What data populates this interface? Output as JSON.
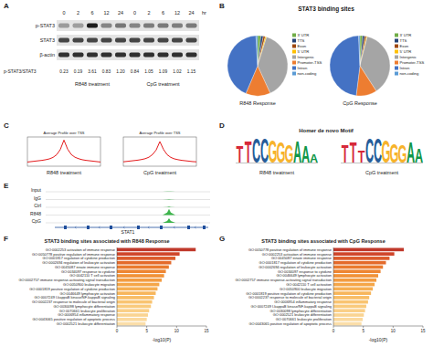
{
  "panel_labels": [
    "A",
    "B",
    "C",
    "D",
    "E",
    "F",
    "G"
  ],
  "headers": {
    "B": "STAT3 binding sites",
    "D": "Homer de novo Motif"
  },
  "blot": {
    "lanes": [
      "0",
      "2",
      "6",
      "12",
      "24",
      "0",
      "2",
      "6",
      "12",
      "24"
    ],
    "unit": "hr",
    "rows": [
      "p-STAT3",
      "STAT3",
      "β-actin"
    ],
    "ratio_label": "p-STAT3/STAT3",
    "ratios": [
      "0.23",
      "0.19",
      "3.61",
      "0.83",
      "1.20",
      "0.84",
      "1.05",
      "1.09",
      "1.02",
      "1.15"
    ],
    "groups": [
      "R848 treatment",
      "CpG treatment"
    ]
  },
  "motifs": [
    {
      "label": "R848 treatment",
      "consensus": "TTCCGGGAAA",
      "heights": [
        1.3,
        1.7,
        1.9,
        1.9,
        1.8,
        1.6,
        1.4,
        1.7,
        1.3,
        0.7
      ]
    },
    {
      "label": "CpG treatment",
      "consensus": "TTTCCGGGAA",
      "heights": [
        1.4,
        1.6,
        0.9,
        1.9,
        1.9,
        1.8,
        1.5,
        1.4,
        1.6,
        1.1
      ]
    }
  ],
  "motif_colors": {
    "A": "#109648",
    "C": "#255c99",
    "G": "#f7b32b",
    "T": "#d62839"
  },
  "genome_track": {
    "tracks": [
      {
        "label": "Input",
        "signal": 0.05
      },
      {
        "label": "IgG",
        "signal": 0.08
      },
      {
        "label": "Ctrl",
        "signal": 0.1
      },
      {
        "label": "R848",
        "signal": 0.95
      },
      {
        "label": "CpG",
        "signal": 0.7
      }
    ],
    "signal_range": [
      0,
      1
    ],
    "gene": "STAT1",
    "color": "#3cb44b"
  },
  "chart_data": [
    {
      "type": "pie",
      "title": "R848 Response",
      "categories": [
        "3' UTR",
        "TTS",
        "Exon",
        "5' UTR",
        "Intergenic",
        "Promoter-TSS",
        "Intron",
        "non-coding"
      ],
      "values": [
        8,
        6,
        5,
        3,
        177,
        61,
        197,
        4
      ],
      "colors": [
        "#70ad47",
        "#264478",
        "#9e480e",
        "#ffc000",
        "#a5a5a5",
        "#ed7d31",
        "#4472c4",
        "#5b9bd5"
      ],
      "legend": "right"
    },
    {
      "type": "pie",
      "title": "CpG Response",
      "categories": [
        "3' UTR",
        "TTS",
        "Exon",
        "5' UTR",
        "Intergenic",
        "Promoter-TSS",
        "Intron",
        "non-coding"
      ],
      "values": [
        6,
        5,
        4,
        2,
        160,
        48,
        205,
        3
      ],
      "colors": [
        "#70ad47",
        "#264478",
        "#9e480e",
        "#ffc000",
        "#a5a5a5",
        "#ed7d31",
        "#4472c4",
        "#5b9bd5"
      ],
      "legend": "right"
    },
    {
      "type": "line",
      "title": "Average Profile over TSS",
      "x_label": "R848 treatment",
      "x": [
        -3000,
        -2700,
        -2400,
        -2100,
        -1800,
        -1500,
        -1200,
        -900,
        -600,
        -300,
        0,
        300,
        600,
        900,
        1200,
        1500,
        1800,
        2100,
        2400,
        2700,
        3000
      ],
      "values": [
        0.2,
        0.22,
        0.24,
        0.26,
        0.28,
        0.31,
        0.35,
        0.42,
        0.55,
        0.8,
        1.25,
        0.82,
        0.56,
        0.43,
        0.36,
        0.31,
        0.28,
        0.26,
        0.24,
        0.22,
        0.2
      ],
      "xlim": [
        -3000,
        3000
      ],
      "ylim": [
        0,
        1.4
      ],
      "color": "#e41a1c",
      "tick_labels": false
    },
    {
      "type": "line",
      "title": "Average Profile over TSS",
      "x_label": "CpG treatment",
      "x": [
        -3000,
        -2700,
        -2400,
        -2100,
        -1800,
        -1500,
        -1200,
        -900,
        -600,
        -300,
        0,
        300,
        600,
        900,
        1200,
        1500,
        1800,
        2100,
        2400,
        2700,
        3000
      ],
      "values": [
        0.21,
        0.23,
        0.25,
        0.27,
        0.29,
        0.32,
        0.36,
        0.43,
        0.56,
        0.78,
        1.18,
        0.8,
        0.55,
        0.42,
        0.35,
        0.31,
        0.28,
        0.26,
        0.24,
        0.22,
        0.21
      ],
      "xlim": [
        -3000,
        3000
      ],
      "ylim": [
        0,
        1.4
      ],
      "color": "#e41a1c",
      "tick_labels": false
    },
    {
      "type": "bar",
      "orientation": "horizontal",
      "title": "STAT3 binding sites associated with R848 Response",
      "x_label": "-log10(P)",
      "categories": [
        "GO:0002253 activation of immune response",
        "GO:0050778 positive regulation of immune response",
        "GO:0001817 regulation of cytokine production",
        "GO:0002694 regulation of leukocyte activation",
        "GO:0045087 innate immune response",
        "GO:0034097 response to cytokine",
        "GO:0042110 T cell activation",
        "GO:0002757 immune response-activating signal transduction",
        "GO:0050900 leukocyte migration",
        "GO:0001819 positive regulation of cytokine production",
        "GO:0046649 lymphocyte activation",
        "GO:0007249 I-kappaB kinase/NF-kappaB signaling",
        "GO:0002237 response to molecule of bacterial origin",
        "GO:0030098 lymphocyte differentiation",
        "GO:0070661 leukocyte proliferation",
        "GO:0006954 inflammatory response",
        "GO:0043065 positive regulation of apoptotic process",
        "GO:0002521 leukocyte differentiation"
      ],
      "values": [
        13.2,
        10.5,
        9.8,
        9.1,
        8.7,
        8.2,
        7.9,
        7.5,
        7.1,
        6.8,
        6.5,
        6.2,
        5.9,
        5.7,
        5.4,
        5.2,
        5.0,
        4.8
      ],
      "colors": [
        "#c0392b",
        "#d0452a",
        "#dc5a2a",
        "#e46a2b",
        "#ea7a2e",
        "#ee8633",
        "#f19238",
        "#f39c40",
        "#f5a648",
        "#f6ae51",
        "#f7b65b",
        "#f8bd66",
        "#f9c471",
        "#f9ca7c",
        "#facf87",
        "#fad492",
        "#fbd99d",
        "#fbdea8"
      ],
      "xlim": [
        0,
        15
      ],
      "xticks": [
        0,
        5,
        10,
        15
      ]
    },
    {
      "type": "bar",
      "orientation": "horizontal",
      "title": "STAT3 binding sites associated with CpG Response",
      "x_label": "-log10(P)",
      "categories": [
        "GO:0050778 positive regulation of immune response",
        "GO:0002253 activation of immune response",
        "GO:0045087 innate immune response",
        "GO:0001817 regulation of cytokine production",
        "GO:0002694 regulation of leukocyte activation",
        "GO:0034097 response to cytokine",
        "GO:0046649 lymphocyte activation",
        "GO:0002757 immune response-activating signal transduction",
        "GO:0042110 T cell activation",
        "GO:0050900 leukocyte migration",
        "GO:0001819 positive regulation of cytokine production",
        "GO:0002237 response to molecule of bacterial origin",
        "GO:0006954 inflammatory response",
        "GO:0007249 I-kappaB kinase/NF-kappaB signaling",
        "GO:0030098 lymphocyte differentiation",
        "GO:0002521 leukocyte differentiation",
        "GO:0070661 leukocyte proliferation",
        "GO:0043065 positive regulation of apoptotic process"
      ],
      "values": [
        11.8,
        10.2,
        9.4,
        8.8,
        8.3,
        7.9,
        7.5,
        7.2,
        6.9,
        6.6,
        6.3,
        6.0,
        5.8,
        5.5,
        5.3,
        5.1,
        4.9,
        4.7
      ],
      "colors": [
        "#c0392b",
        "#d0452a",
        "#dc5a2a",
        "#e46a2b",
        "#ea7a2e",
        "#ee8633",
        "#f19238",
        "#f39c40",
        "#f5a648",
        "#f6ae51",
        "#f7b65b",
        "#f8bd66",
        "#f9c471",
        "#f9ca7c",
        "#facf87",
        "#fad492",
        "#fbd99d",
        "#fbdea8"
      ],
      "xlim": [
        0,
        15
      ],
      "xticks": [
        0,
        5,
        10,
        15
      ]
    }
  ]
}
